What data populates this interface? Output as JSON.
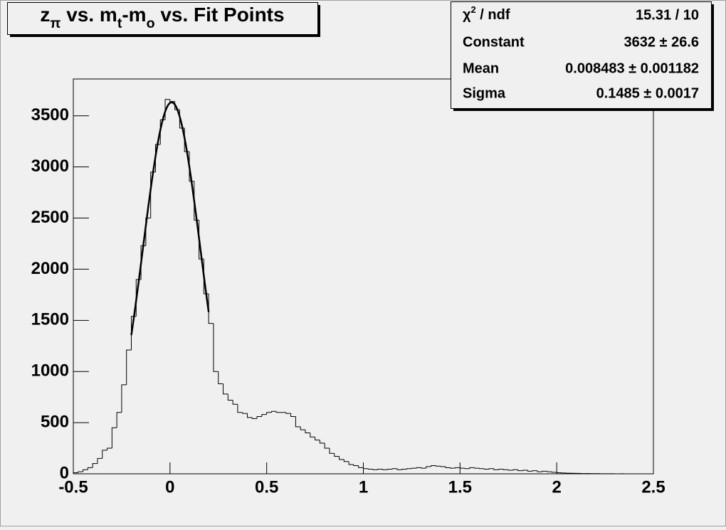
{
  "chart_data": {
    "type": "histogram",
    "title_parts": [
      {
        "text": "z"
      },
      {
        "text": "π",
        "sub": true
      },
      {
        "text": " vs. m"
      },
      {
        "text": "t",
        "sub": true
      },
      {
        "text": "-m"
      },
      {
        "text": "o",
        "sub": true
      },
      {
        "text": " vs. Fit Points"
      }
    ],
    "bins": [
      -0.5,
      -0.475,
      -0.45,
      -0.425,
      -0.4,
      -0.375,
      -0.35,
      -0.325,
      -0.3,
      -0.275,
      -0.25,
      -0.225,
      -0.2,
      -0.175,
      -0.15,
      -0.125,
      -0.1,
      -0.075,
      -0.05,
      -0.025,
      0,
      0.025,
      0.05,
      0.075,
      0.1,
      0.125,
      0.15,
      0.175,
      0.2,
      0.225,
      0.25,
      0.275,
      0.3,
      0.325,
      0.35,
      0.375,
      0.4,
      0.425,
      0.45,
      0.475,
      0.5,
      0.525,
      0.55,
      0.575,
      0.6,
      0.625,
      0.65,
      0.675,
      0.7,
      0.725,
      0.75,
      0.775,
      0.8,
      0.825,
      0.85,
      0.875,
      0.9,
      0.925,
      0.95,
      0.975,
      1,
      1.025,
      1.05,
      1.075,
      1.1,
      1.125,
      1.15,
      1.175,
      1.2,
      1.225,
      1.25,
      1.275,
      1.3,
      1.325,
      1.35,
      1.375,
      1.4,
      1.425,
      1.45,
      1.475,
      1.5,
      1.525,
      1.55,
      1.575,
      1.6,
      1.625,
      1.65,
      1.675,
      1.7,
      1.725,
      1.75,
      1.775,
      1.8,
      1.825,
      1.85,
      1.875,
      1.9,
      1.925,
      1.95,
      1.975,
      2,
      2.025,
      2.05,
      2.075,
      2.1,
      2.125,
      2.15,
      2.175,
      2.2,
      2.225,
      2.25,
      2.275,
      2.3,
      2.325,
      2.35,
      2.375,
      2.4,
      2.425,
      2.45,
      2.475,
      2.5
    ],
    "values": [
      10,
      20,
      40,
      60,
      100,
      150,
      230,
      250,
      450,
      600,
      870,
      1210,
      1540,
      1900,
      2230,
      2500,
      2950,
      3220,
      3460,
      3660,
      3640,
      3560,
      3380,
      3150,
      2860,
      2480,
      2100,
      1760,
      1470,
      1000,
      880,
      780,
      720,
      680,
      600,
      590,
      550,
      540,
      560,
      580,
      600,
      610,
      600,
      600,
      590,
      560,
      460,
      430,
      400,
      360,
      330,
      300,
      250,
      200,
      170,
      140,
      120,
      90,
      80,
      60,
      50,
      45,
      40,
      45,
      40,
      45,
      50,
      40,
      45,
      50,
      55,
      60,
      55,
      70,
      80,
      75,
      70,
      60,
      55,
      60,
      55,
      50,
      60,
      55,
      50,
      45,
      50,
      40,
      45,
      40,
      35,
      40,
      30,
      35,
      25,
      30,
      20,
      25,
      20,
      15,
      10,
      8,
      6,
      5,
      4,
      3,
      3,
      2,
      2,
      1,
      1,
      1,
      0,
      1,
      0,
      0,
      0,
      0,
      0,
      0
    ],
    "color": "#000000",
    "fit": {
      "constant": 3632,
      "mean": 0.008483,
      "sigma": 0.1485,
      "xmin": -0.2,
      "xmax": 0.2,
      "color": "#000000"
    },
    "stats": [
      {
        "name_parts": [
          {
            "text": "χ"
          },
          {
            "text": "2",
            "sup": true
          },
          {
            "text": " / ndf"
          }
        ],
        "value": "15.31 / 10"
      },
      {
        "name": "Constant",
        "value": "3632 ± 26.6"
      },
      {
        "name": "Mean",
        "value": "0.008483 ± 0.001182"
      },
      {
        "name": "Sigma",
        "value": "0.1485 ± 0.0017"
      }
    ],
    "xlim": [
      -0.5,
      2.5
    ],
    "xticks": [
      -0.5,
      0,
      0.5,
      1,
      1.5,
      2,
      2.5
    ],
    "ylim": [
      0,
      3860
    ],
    "yticks": [
      0,
      500,
      1000,
      1500,
      2000,
      2500,
      3000,
      3500
    ]
  }
}
